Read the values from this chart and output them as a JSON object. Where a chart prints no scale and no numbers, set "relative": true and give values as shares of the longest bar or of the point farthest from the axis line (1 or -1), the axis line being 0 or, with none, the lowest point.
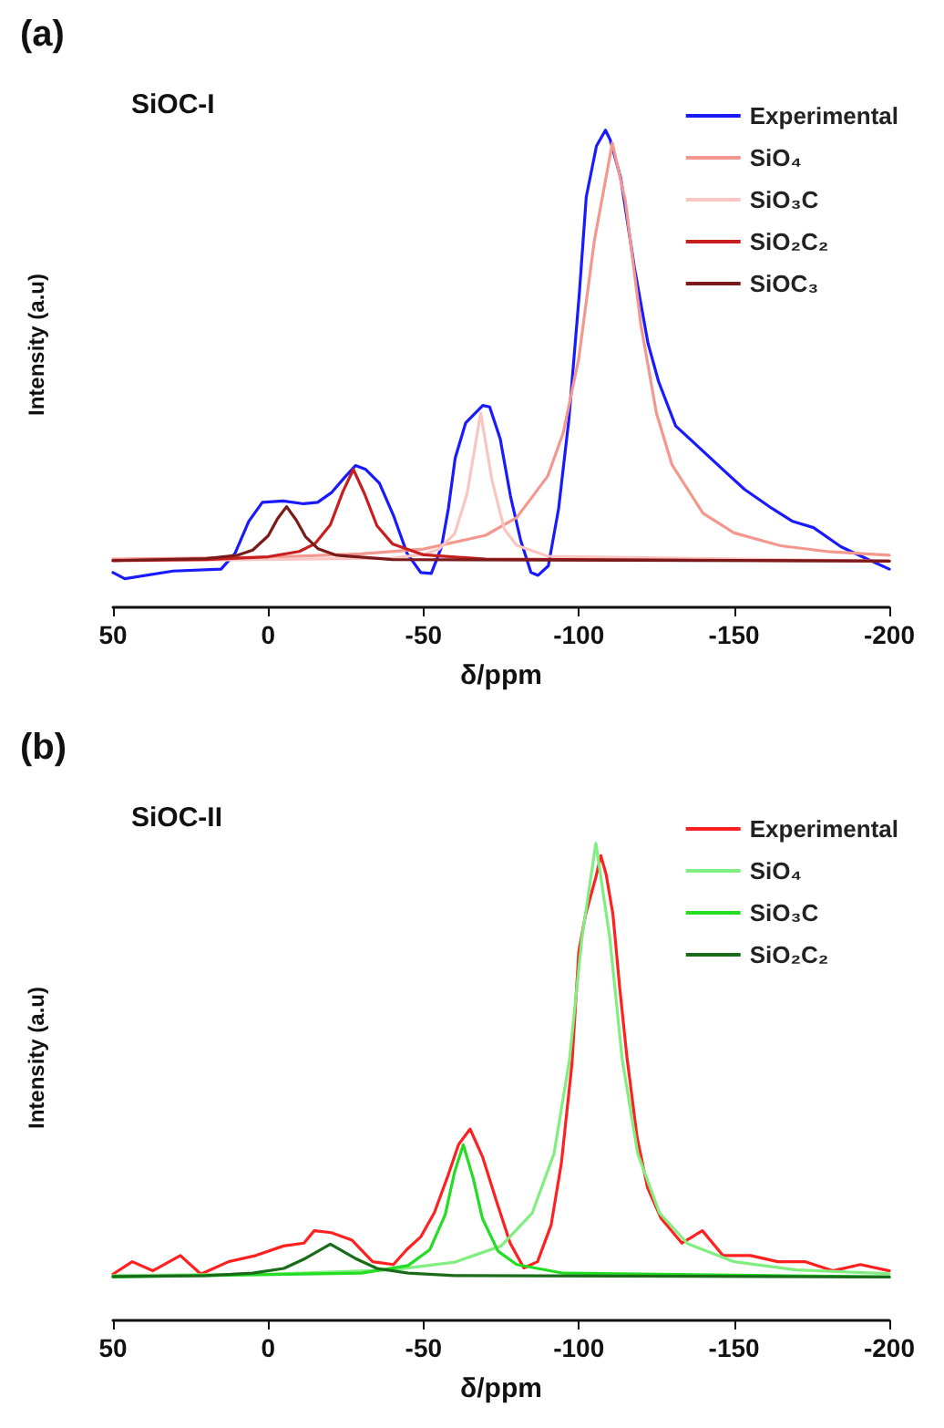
{
  "chart_data": [
    {
      "type": "line",
      "title": "(a)",
      "xlabel": "δ/ppm",
      "ylabel": "Intensity (a.u)",
      "annotations": [
        "SiOC-I"
      ],
      "relative": true,
      "xlim": [
        50,
        -200
      ],
      "xticks": [
        50,
        0,
        -50,
        -100,
        -150,
        -200
      ],
      "legend": "top right",
      "marker": "none",
      "series": [
        {
          "name": "Experimental",
          "color": "#1a1aff",
          "x": [
            50,
            46.2,
            30.7,
            15.2,
            10.7,
            6.3,
            1.9,
            -4.8,
            -11.4,
            -15.9,
            -20.3,
            -24.7,
            -28.1,
            -31.4,
            -35.8,
            -40.3,
            -44.7,
            -49.1,
            -52.5,
            -55.8,
            -58.0,
            -60.2,
            -63.6,
            -69.1,
            -71.3,
            -74.7,
            -78.0,
            -81.3,
            -84.6,
            -86.9,
            -90.2,
            -93.5,
            -96.8,
            -100.2,
            -102.4,
            -105.7,
            -108.6,
            -110.1,
            -113.5,
            -117.9,
            -122.3,
            -125.7,
            -131.2,
            -137.9,
            -146.7,
            -153.4,
            -162.3,
            -168.9,
            -175.6,
            -184.4,
            -193.3,
            -200
          ],
          "values": [
            0.073,
            0.06,
            0.076,
            0.08,
            0.113,
            0.18,
            0.22,
            0.223,
            0.217,
            0.22,
            0.24,
            0.273,
            0.297,
            0.289,
            0.26,
            0.193,
            0.113,
            0.073,
            0.071,
            0.127,
            0.207,
            0.313,
            0.387,
            0.423,
            0.42,
            0.353,
            0.233,
            0.14,
            0.073,
            0.067,
            0.087,
            0.207,
            0.393,
            0.66,
            0.86,
            0.967,
            1,
            0.98,
            0.9,
            0.713,
            0.553,
            0.473,
            0.38,
            0.34,
            0.287,
            0.247,
            0.207,
            0.18,
            0.167,
            0.127,
            0.1,
            0.08
          ]
        },
        {
          "name": "SiO₄",
          "color": "#f4978e",
          "x": [
            50,
            0,
            -30,
            -50,
            -70,
            -80,
            -90,
            -95,
            -100,
            -105,
            -110.8,
            -115,
            -120,
            -125,
            -130,
            -140,
            -150,
            -165,
            -180,
            -200
          ],
          "values": [
            0.101,
            0.105,
            0.112,
            0.122,
            0.151,
            0.188,
            0.275,
            0.366,
            0.522,
            0.768,
            0.973,
            0.852,
            0.592,
            0.407,
            0.299,
            0.197,
            0.156,
            0.129,
            0.117,
            0.109
          ]
        },
        {
          "name": "SiO₃C",
          "color": "#f9c6c2",
          "x": [
            50,
            -40,
            -50,
            -55,
            -60,
            -64,
            -68.4,
            -72,
            -76,
            -80,
            -90,
            -200
          ],
          "values": [
            0.097,
            0.103,
            0.111,
            0.122,
            0.154,
            0.237,
            0.407,
            0.268,
            0.164,
            0.13,
            0.107,
            0.097
          ]
        },
        {
          "name": "SiO₂C₂",
          "color": "#c81e1e",
          "x": [
            50,
            20,
            0,
            -10,
            -15,
            -20,
            -24,
            -27.4,
            -31,
            -35,
            -40,
            -50,
            -70,
            -200
          ],
          "values": [
            0.098,
            0.1,
            0.106,
            0.117,
            0.133,
            0.173,
            0.242,
            0.289,
            0.238,
            0.171,
            0.133,
            0.11,
            0.101,
            0.097
          ]
        },
        {
          "name": "SiOC₃",
          "color": "#7a1a1a",
          "x": [
            50,
            20,
            10,
            5,
            0,
            -3,
            -5.9,
            -9,
            -12,
            -16,
            -22,
            -40,
            -200
          ],
          "values": [
            0.098,
            0.102,
            0.109,
            0.12,
            0.15,
            0.186,
            0.211,
            0.183,
            0.148,
            0.123,
            0.109,
            0.1,
            0.097
          ]
        }
      ]
    },
    {
      "type": "line",
      "title": "(b)",
      "xlabel": "δ/ppm",
      "ylabel": "Intensity (a.u)",
      "annotations": [
        "SiOC-II"
      ],
      "relative": true,
      "xlim": [
        50,
        -200
      ],
      "xticks": [
        50,
        0,
        -50,
        -100,
        -150,
        -200
      ],
      "legend": "top right",
      "marker": "none",
      "series": [
        {
          "name": "Experimental",
          "color": "#ff2020",
          "x": [
            50,
            43.8,
            37.2,
            28.3,
            21.7,
            12.8,
            4.0,
            -4.9,
            -11.5,
            -14.8,
            -20.3,
            -27.0,
            -33.6,
            -40.3,
            -44.7,
            -49.1,
            -53.5,
            -57.9,
            -61.3,
            -65.0,
            -69.0,
            -73.4,
            -77.9,
            -82.3,
            -86.7,
            -91.1,
            -94.4,
            -97.8,
            -100.0,
            -102.2,
            -105.5,
            -107.1,
            -108.8,
            -111.0,
            -113.2,
            -115.5,
            -118.8,
            -122.1,
            -126.5,
            -133.2,
            -139.8,
            -146.4,
            -155.3,
            -164.1,
            -173.0,
            -181.8,
            -190.7,
            -200
          ],
          "values": [
            0.097,
            0.123,
            0.104,
            0.136,
            0.097,
            0.123,
            0.136,
            0.156,
            0.162,
            0.188,
            0.184,
            0.168,
            0.123,
            0.117,
            0.149,
            0.175,
            0.226,
            0.304,
            0.369,
            0.401,
            0.343,
            0.252,
            0.162,
            0.11,
            0.123,
            0.2,
            0.33,
            0.538,
            0.773,
            0.851,
            0.929,
            0.974,
            0.935,
            0.851,
            0.696,
            0.552,
            0.383,
            0.279,
            0.214,
            0.162,
            0.188,
            0.136,
            0.136,
            0.123,
            0.123,
            0.104,
            0.117,
            0.104
          ]
        },
        {
          "name": "SiO₄",
          "color": "#80ee80",
          "x": [
            50,
            0,
            -40,
            -60,
            -75,
            -85,
            -92,
            -97,
            -101,
            -105.5,
            -110,
            -114,
            -119,
            -126,
            -135,
            -150,
            -170,
            -200
          ],
          "values": [
            0.094,
            0.097,
            0.106,
            0.122,
            0.156,
            0.225,
            0.349,
            0.546,
            0.801,
            1,
            0.801,
            0.546,
            0.349,
            0.225,
            0.161,
            0.123,
            0.106,
            0.098
          ]
        },
        {
          "name": "SiO₃C",
          "color": "#22dd22",
          "x": [
            50,
            -30,
            -45,
            -52,
            -57,
            -60,
            -62.8,
            -66,
            -69,
            -74,
            -80,
            -95,
            -200
          ],
          "values": [
            0.091,
            0.099,
            0.115,
            0.148,
            0.222,
            0.311,
            0.368,
            0.298,
            0.213,
            0.145,
            0.117,
            0.099,
            0.091
          ]
        },
        {
          "name": "SiO₂C₂",
          "color": "#1a6b1a",
          "x": [
            50,
            20,
            5,
            -5,
            -12,
            -20,
            -28,
            -35,
            -45,
            -60,
            -200
          ],
          "values": [
            0.092,
            0.094,
            0.099,
            0.109,
            0.13,
            0.16,
            0.13,
            0.109,
            0.099,
            0.094,
            0.091
          ]
        }
      ]
    }
  ]
}
